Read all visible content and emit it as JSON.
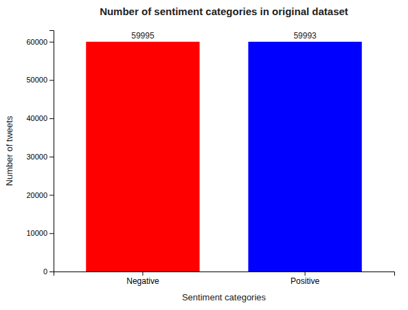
{
  "chart_data": {
    "type": "bar",
    "title": "Number of sentiment categories in original dataset",
    "xlabel": "Sentiment categories",
    "ylabel": "Number of tweets",
    "categories": [
      "Negative",
      "Positive"
    ],
    "values": [
      59995,
      59993
    ],
    "colors": [
      "#ff0000",
      "#0000ff"
    ],
    "ylim": [
      0,
      63000
    ],
    "yticks": [
      0,
      10000,
      20000,
      30000,
      40000,
      50000,
      60000
    ],
    "data_labels": true,
    "grid": false
  }
}
